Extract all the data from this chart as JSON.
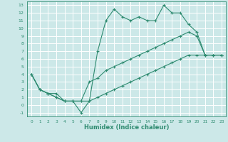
{
  "title": "",
  "xlabel": "Humidex (Indice chaleur)",
  "xlim": [
    -0.5,
    23.5
  ],
  "ylim": [
    -1.5,
    13.5
  ],
  "xticks": [
    0,
    1,
    2,
    3,
    4,
    5,
    6,
    7,
    8,
    9,
    10,
    11,
    12,
    13,
    14,
    15,
    16,
    17,
    18,
    19,
    20,
    21,
    22,
    23
  ],
  "yticks": [
    -1,
    0,
    1,
    2,
    3,
    4,
    5,
    6,
    7,
    8,
    9,
    10,
    11,
    12,
    13
  ],
  "line_color": "#2e8b70",
  "bg_color": "#cce8e8",
  "grid_color": "#ffffff",
  "lines": [
    {
      "x": [
        0,
        1,
        2,
        3,
        4,
        5,
        6,
        7,
        8,
        9,
        10,
        11,
        12,
        13,
        14,
        15,
        16,
        17,
        18,
        19,
        20,
        21,
        22,
        23
      ],
      "y": [
        4,
        2,
        1.5,
        1.5,
        0.5,
        0.5,
        -1,
        0.5,
        7,
        11,
        12.5,
        11.5,
        11,
        11.5,
        11,
        11,
        13,
        12,
        12,
        10.5,
        9.5,
        6.5,
        6.5,
        6.5
      ]
    },
    {
      "x": [
        0,
        1,
        2,
        3,
        4,
        5,
        6,
        7,
        8,
        9,
        10,
        11,
        12,
        13,
        14,
        15,
        16,
        17,
        18,
        19,
        20,
        21,
        22,
        23
      ],
      "y": [
        4,
        2,
        1.5,
        1,
        0.5,
        0.5,
        0.5,
        3,
        3.5,
        4.5,
        5,
        5.5,
        6,
        6.5,
        7,
        7.5,
        8,
        8.5,
        9,
        9.5,
        9,
        6.5,
        6.5,
        6.5
      ]
    },
    {
      "x": [
        0,
        1,
        2,
        3,
        4,
        5,
        6,
        7,
        8,
        9,
        10,
        11,
        12,
        13,
        14,
        15,
        16,
        17,
        18,
        19,
        20,
        21,
        22,
        23
      ],
      "y": [
        4,
        2,
        1.5,
        1,
        0.5,
        0.5,
        0.5,
        0.5,
        1,
        1.5,
        2,
        2.5,
        3,
        3.5,
        4,
        4.5,
        5,
        5.5,
        6,
        6.5,
        6.5,
        6.5,
        6.5,
        6.5
      ]
    }
  ]
}
